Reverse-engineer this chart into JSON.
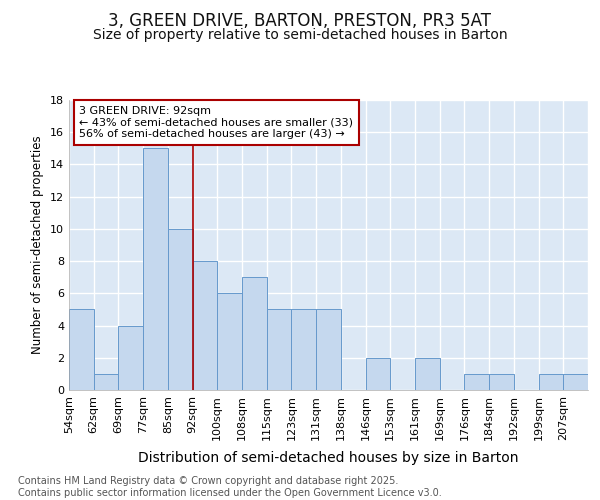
{
  "title": "3, GREEN DRIVE, BARTON, PRESTON, PR3 5AT",
  "subtitle": "Size of property relative to semi-detached houses in Barton",
  "xlabel": "Distribution of semi-detached houses by size in Barton",
  "ylabel": "Number of semi-detached properties",
  "bin_edges": [
    "54sqm",
    "62sqm",
    "69sqm",
    "77sqm",
    "85sqm",
    "92sqm",
    "100sqm",
    "108sqm",
    "115sqm",
    "123sqm",
    "131sqm",
    "138sqm",
    "146sqm",
    "153sqm",
    "161sqm",
    "169sqm",
    "176sqm",
    "184sqm",
    "192sqm",
    "199sqm",
    "207sqm"
  ],
  "values": [
    5,
    1,
    4,
    15,
    10,
    8,
    6,
    7,
    5,
    5,
    5,
    0,
    2,
    0,
    2,
    0,
    1,
    1,
    0,
    1,
    1
  ],
  "bar_color": "#c5d8ee",
  "bar_edge_color": "#6699cc",
  "highlight_bin": 5,
  "highlight_line_color": "#aa0000",
  "annotation_text": "3 GREEN DRIVE: 92sqm\n← 43% of semi-detached houses are smaller (33)\n56% of semi-detached houses are larger (43) →",
  "annotation_box_color": "#ffffff",
  "annotation_box_edge_color": "#aa0000",
  "ylim": [
    0,
    18
  ],
  "yticks": [
    0,
    2,
    4,
    6,
    8,
    10,
    12,
    14,
    16,
    18
  ],
  "background_color": "#ffffff",
  "plot_bg_color": "#dce8f5",
  "grid_color": "#ffffff",
  "footer": "Contains HM Land Registry data © Crown copyright and database right 2025.\nContains public sector information licensed under the Open Government Licence v3.0.",
  "title_fontsize": 12,
  "subtitle_fontsize": 10,
  "xlabel_fontsize": 10,
  "ylabel_fontsize": 8.5,
  "tick_fontsize": 8,
  "footer_fontsize": 7,
  "annotation_fontsize": 8
}
